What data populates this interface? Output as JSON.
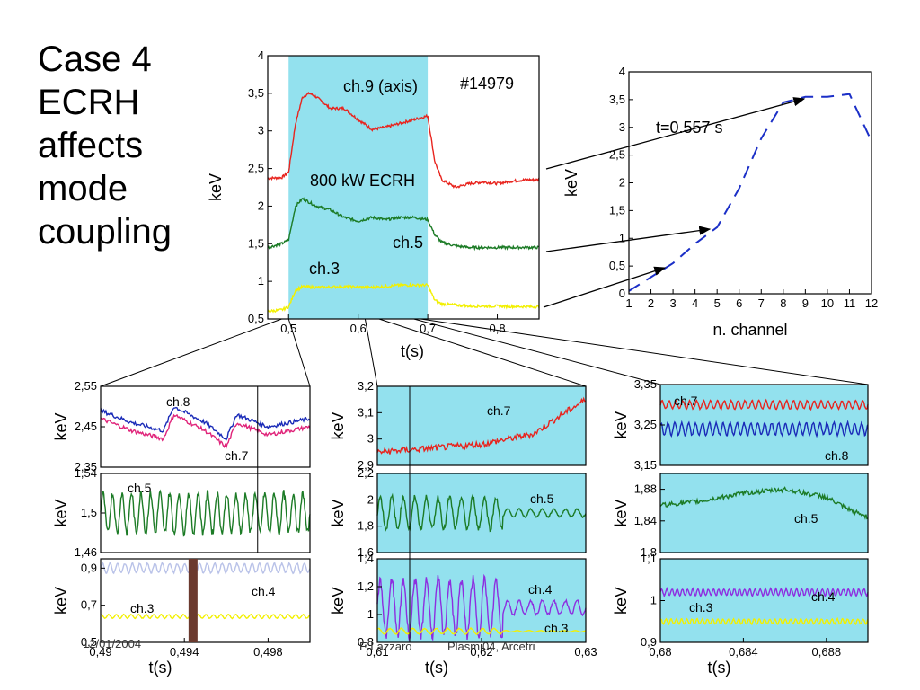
{
  "slide": {
    "title": "Case 4\nECRH\naffects\nmode\ncoupling",
    "footer_date": "12/01/2004",
    "footer_author": "E.Lazzaro",
    "footer_event": "Plasmi04, Arcetri"
  },
  "colors": {
    "ecrh_band": "#93e1ee",
    "red": "#e8241e",
    "green": "#1c7b26",
    "yellow": "#f2f000",
    "blue": "#1a2bb8",
    "magenta": "#e0247a",
    "purple": "#8d2ee0",
    "lavender": "#b9c2e8",
    "dash_blue": "#1b2fc7",
    "marker_bar": "#6b3a2e"
  },
  "chart_data": [
    {
      "id": "main",
      "type": "line",
      "ylabel": "keV",
      "xlabel": "t(s)",
      "xlim": [
        0.47,
        0.86
      ],
      "ylim": [
        0.5,
        4
      ],
      "xticks": [
        "0,5",
        "0,6",
        "0,7",
        "0,8"
      ],
      "yticks": [
        "0,5",
        "1",
        "1,5",
        "2",
        "2,5",
        "3",
        "3,5",
        "4"
      ],
      "shot_label": "#14979",
      "ecrh_label": "800 kW ECRH",
      "ecrh_window": [
        0.5,
        0.7
      ],
      "series": [
        {
          "name": "ch.9 (axis)",
          "color": "red",
          "points": [
            [
              0.47,
              2.37
            ],
            [
              0.49,
              2.38
            ],
            [
              0.5,
              2.45
            ],
            [
              0.51,
              3.1
            ],
            [
              0.52,
              3.45
            ],
            [
              0.53,
              3.5
            ],
            [
              0.54,
              3.45
            ],
            [
              0.56,
              3.3
            ],
            [
              0.58,
              3.3
            ],
            [
              0.6,
              3.15
            ],
            [
              0.62,
              3.02
            ],
            [
              0.64,
              3.05
            ],
            [
              0.66,
              3.1
            ],
            [
              0.68,
              3.15
            ],
            [
              0.7,
              3.2
            ],
            [
              0.71,
              2.6
            ],
            [
              0.72,
              2.35
            ],
            [
              0.74,
              2.25
            ],
            [
              0.76,
              2.3
            ],
            [
              0.78,
              2.32
            ],
            [
              0.8,
              2.3
            ],
            [
              0.82,
              2.33
            ],
            [
              0.84,
              2.35
            ],
            [
              0.86,
              2.35
            ]
          ]
        },
        {
          "name": "ch.5",
          "color": "green",
          "points": [
            [
              0.47,
              1.45
            ],
            [
              0.49,
              1.5
            ],
            [
              0.5,
              1.55
            ],
            [
              0.51,
              2.0
            ],
            [
              0.52,
              2.1
            ],
            [
              0.54,
              2.0
            ],
            [
              0.56,
              1.95
            ],
            [
              0.58,
              1.85
            ],
            [
              0.6,
              1.8
            ],
            [
              0.62,
              1.85
            ],
            [
              0.64,
              1.82
            ],
            [
              0.66,
              1.85
            ],
            [
              0.68,
              1.85
            ],
            [
              0.7,
              1.82
            ],
            [
              0.71,
              1.62
            ],
            [
              0.72,
              1.52
            ],
            [
              0.74,
              1.47
            ],
            [
              0.76,
              1.45
            ],
            [
              0.8,
              1.45
            ],
            [
              0.84,
              1.45
            ],
            [
              0.86,
              1.45
            ]
          ]
        },
        {
          "name": "ch.3",
          "color": "yellow",
          "points": [
            [
              0.47,
              0.6
            ],
            [
              0.49,
              0.62
            ],
            [
              0.5,
              0.66
            ],
            [
              0.51,
              0.88
            ],
            [
              0.52,
              0.93
            ],
            [
              0.54,
              0.92
            ],
            [
              0.58,
              0.93
            ],
            [
              0.62,
              0.92
            ],
            [
              0.66,
              0.95
            ],
            [
              0.7,
              0.95
            ],
            [
              0.71,
              0.75
            ],
            [
              0.72,
              0.7
            ],
            [
              0.76,
              0.67
            ],
            [
              0.8,
              0.67
            ],
            [
              0.86,
              0.66
            ]
          ]
        }
      ]
    },
    {
      "id": "profile",
      "type": "line",
      "ylabel": "keV",
      "xlabel": "n. channel",
      "xlim": [
        1,
        12
      ],
      "ylim": [
        0,
        4
      ],
      "xticks": [
        "1",
        "2",
        "3",
        "4",
        "5",
        "6",
        "7",
        "8",
        "9",
        "10",
        "11",
        "12"
      ],
      "yticks": [
        "0",
        "0,5",
        "1",
        "1,5",
        "2",
        "2,5",
        "3",
        "3,5",
        "4"
      ],
      "annotation": "t=0.557 s",
      "series": [
        {
          "name": "",
          "style": "dashed",
          "color": "dash_blue",
          "x": [
            1,
            2,
            3,
            4,
            5,
            6,
            7,
            8,
            9,
            10,
            11,
            12
          ],
          "y": [
            0.05,
            0.3,
            0.55,
            0.9,
            1.2,
            1.9,
            2.8,
            3.45,
            3.55,
            3.55,
            3.6,
            2.75
          ]
        }
      ]
    },
    {
      "id": "zoom1-top",
      "type": "line",
      "ylabel": "keV",
      "xlim": [
        0.49,
        0.5
      ],
      "ylim": [
        2.35,
        2.55
      ],
      "yticks": [
        "2,35",
        "2,45",
        "2,55"
      ],
      "series": [
        {
          "name": "ch.8",
          "color": "blue",
          "points": [
            [
              0.49,
              2.49
            ],
            [
              0.4915,
              2.46
            ],
            [
              0.493,
              2.44
            ],
            [
              0.4935,
              2.5
            ],
            [
              0.495,
              2.46
            ],
            [
              0.496,
              2.42
            ],
            [
              0.4965,
              2.48
            ],
            [
              0.498,
              2.45
            ],
            [
              0.5,
              2.47
            ]
          ]
        },
        {
          "name": "ch.7",
          "color": "magenta",
          "points": [
            [
              0.49,
              2.47
            ],
            [
              0.4915,
              2.44
            ],
            [
              0.493,
              2.42
            ],
            [
              0.4935,
              2.48
            ],
            [
              0.495,
              2.44
            ],
            [
              0.496,
              2.4
            ],
            [
              0.4965,
              2.46
            ],
            [
              0.498,
              2.43
            ],
            [
              0.5,
              2.45
            ]
          ]
        }
      ]
    },
    {
      "id": "zoom1-mid",
      "type": "line",
      "ylabel": "keV",
      "xlim": [
        0.49,
        0.5
      ],
      "ylim": [
        1.46,
        1.54
      ],
      "yticks": [
        "1,46",
        "1,5",
        "1,54"
      ],
      "series": [
        {
          "name": "ch.5",
          "color": "green",
          "center": 1.5,
          "amplitude": 0.02
        }
      ]
    },
    {
      "id": "zoom1-bot",
      "type": "line",
      "ylabel": "keV",
      "xlabel": "t(s)",
      "xlim": [
        0.49,
        0.5
      ],
      "ylim": [
        0.5,
        0.95
      ],
      "yticks": [
        "0,5",
        "0,7",
        "0,9"
      ],
      "xticks": [
        "0,49",
        "0,494",
        "0,498"
      ],
      "series": [
        {
          "name": "ch.4",
          "color": "lavender",
          "center": 0.9,
          "amplitude": 0.025
        },
        {
          "name": "ch.3",
          "color": "yellow",
          "center": 0.64,
          "amplitude": 0.01
        }
      ]
    },
    {
      "id": "zoom2-top",
      "type": "line",
      "ylabel": "keV",
      "xlim": [
        0.61,
        0.63
      ],
      "ylim": [
        2.9,
        3.2
      ],
      "yticks": [
        "2,9",
        "3",
        "3,1",
        "3,2"
      ],
      "series": [
        {
          "name": "ch.7",
          "color": "red",
          "points": [
            [
              0.61,
              2.95
            ],
            [
              0.62,
              2.98
            ],
            [
              0.625,
              3.02
            ],
            [
              0.628,
              3.1
            ],
            [
              0.63,
              3.15
            ]
          ]
        }
      ]
    },
    {
      "id": "zoom2-mid",
      "type": "line",
      "ylabel": "keV",
      "xlim": [
        0.61,
        0.63
      ],
      "ylim": [
        1.6,
        2.2
      ],
      "yticks": [
        "1,6",
        "1,8",
        "2",
        "2,2"
      ],
      "series": [
        {
          "name": "ch.5",
          "color": "green",
          "center": 1.9,
          "amplitude": 0.12
        }
      ]
    },
    {
      "id": "zoom2-bot",
      "type": "line",
      "ylabel": "keV",
      "xlabel": "t(s)",
      "xlim": [
        0.61,
        0.63
      ],
      "ylim": [
        0.8,
        1.4
      ],
      "yticks": [
        "0,8",
        "1",
        "1,2",
        "1,4"
      ],
      "xticks": [
        "0,61",
        "0,62",
        "0,63"
      ],
      "series": [
        {
          "name": "ch.4",
          "color": "purple",
          "center": 1.05,
          "amplitude": 0.2
        },
        {
          "name": "ch.3",
          "color": "yellow",
          "center": 0.88,
          "amplitude": 0.02
        }
      ]
    },
    {
      "id": "zoom3-top",
      "type": "line",
      "ylabel": "keV",
      "xlim": [
        0.68,
        0.69
      ],
      "ylim": [
        3.15,
        3.35
      ],
      "yticks": [
        "3,15",
        "3,25",
        "3,35"
      ],
      "series": [
        {
          "name": "ch.7",
          "color": "red",
          "center": 3.3,
          "amplitude": 0.01
        },
        {
          "name": "ch.8",
          "color": "blue",
          "center": 3.24,
          "amplitude": 0.015
        }
      ]
    },
    {
      "id": "zoom3-mid",
      "type": "line",
      "ylabel": "keV",
      "xlim": [
        0.68,
        0.69
      ],
      "ylim": [
        1.8,
        1.9
      ],
      "yticks": [
        "1,8",
        "1,84",
        "1,88"
      ],
      "series": [
        {
          "name": "ch.5",
          "color": "green",
          "points": [
            [
              0.68,
              1.86
            ],
            [
              0.682,
              1.865
            ],
            [
              0.684,
              1.875
            ],
            [
              0.686,
              1.88
            ],
            [
              0.688,
              1.87
            ],
            [
              0.689,
              1.855
            ],
            [
              0.69,
              1.845
            ]
          ]
        }
      ]
    },
    {
      "id": "zoom3-bot",
      "type": "line",
      "ylabel": "keV",
      "xlabel": "t(s)",
      "xlim": [
        0.68,
        0.69
      ],
      "ylim": [
        0.9,
        1.1
      ],
      "yticks": [
        "0,9",
        "1",
        "1,1"
      ],
      "xticks": [
        "0,68",
        "0,684",
        "0,688"
      ],
      "series": [
        {
          "name": "ch.4",
          "color": "purple",
          "center": 1.02,
          "amplitude": 0.008
        },
        {
          "name": "ch.3",
          "color": "yellow",
          "center": 0.95,
          "amplitude": 0.006
        }
      ]
    }
  ]
}
